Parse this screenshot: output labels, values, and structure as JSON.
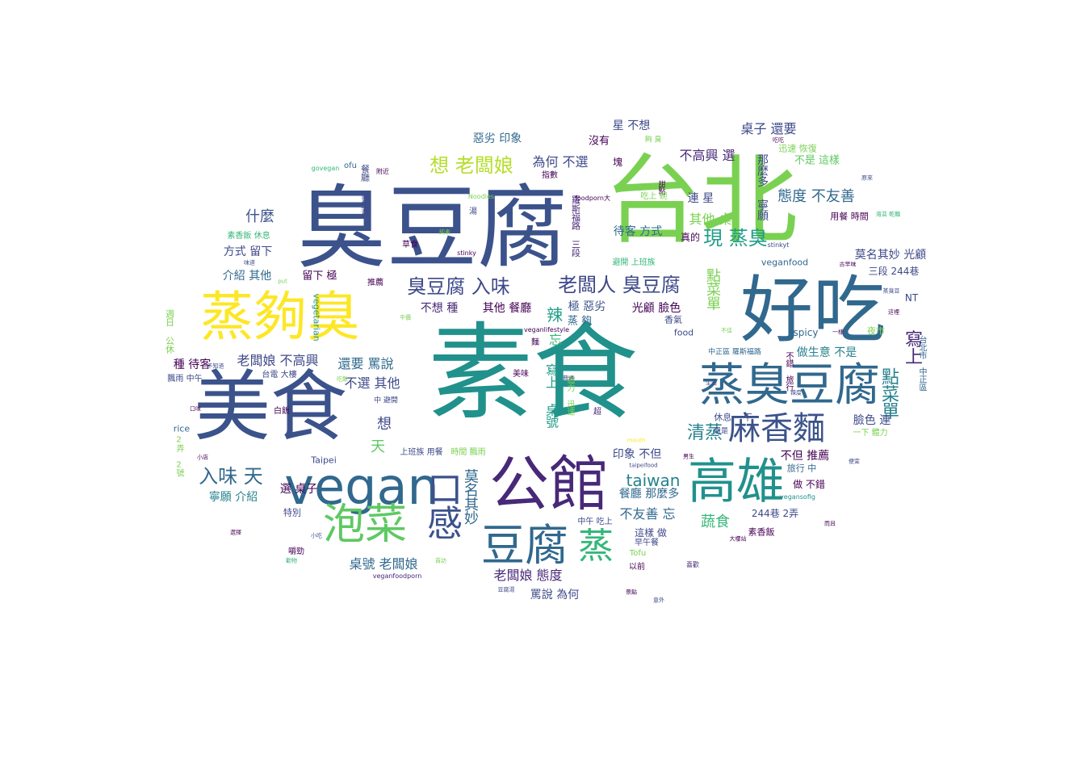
{
  "words": [
    {
      "text": "素食",
      "color": "#21918c"
    },
    {
      "text": "臭豆腐",
      "color": "#3b528b"
    },
    {
      "text": "台北",
      "color": "#7ad151"
    },
    {
      "text": "好吃",
      "color": "#31688e"
    },
    {
      "text": "美食",
      "color": "#3b528b"
    },
    {
      "text": "蒸夠臭",
      "color": "#fde725"
    },
    {
      "text": "公館",
      "color": "#482878"
    },
    {
      "text": "vegan",
      "color": "#31688e"
    },
    {
      "text": "高雄",
      "color": "#21918c"
    },
    {
      "text": "蒸臭豆腐",
      "color": "#31688e"
    },
    {
      "text": "口感",
      "color": "#3b528b"
    },
    {
      "text": "泡菜",
      "color": "#5ec962"
    },
    {
      "text": "豆腐",
      "color": "#31688e"
    },
    {
      "text": "麻香麵",
      "color": "#3b528b"
    },
    {
      "text": "蒸",
      "color": "#35b779"
    },
    {
      "text": "老闆人 臭豆腐",
      "color": "#3e4989"
    },
    {
      "text": "臭豆腐 入味",
      "color": "#3e4989"
    },
    {
      "text": "想 老闆娘",
      "color": "#b5de2b"
    },
    {
      "text": "入味 天",
      "color": "#31688e"
    },
    {
      "text": "taiwan",
      "color": "#26828e"
    },
    {
      "text": "清蒸",
      "color": "#26828e"
    },
    {
      "text": "現 蒸臭",
      "color": "#1f9e89"
    },
    {
      "text": "點菜單",
      "color": "#26828e"
    },
    {
      "text": "寫上",
      "color": "#482878"
    },
    {
      "text": "桌子 還要",
      "color": "#3e4989"
    },
    {
      "text": "態度 不友善",
      "color": "#31688e"
    },
    {
      "text": "不高興 選",
      "color": "#482878"
    },
    {
      "text": "為何 不選",
      "color": "#3e4989"
    },
    {
      "text": "惡劣 印象",
      "color": "#31688e"
    },
    {
      "text": "星 不想",
      "color": "#3e4989"
    },
    {
      "text": "沒有",
      "color": "#440154"
    },
    {
      "text": "什麼",
      "color": "#3b528b"
    },
    {
      "text": "介紹 其他",
      "color": "#31688e"
    },
    {
      "text": "方式 留下",
      "color": "#3e4989"
    },
    {
      "text": "留下 極",
      "color": "#440154"
    },
    {
      "text": "老闆娘 不高興",
      "color": "#3e4989"
    },
    {
      "text": "還要 罵說",
      "color": "#31688e"
    },
    {
      "text": "不選 其他",
      "color": "#3e4989"
    },
    {
      "text": "不想 種",
      "color": "#482878"
    },
    {
      "text": "其他 餐廳",
      "color": "#440154"
    },
    {
      "text": "種 待客",
      "color": "#440154"
    },
    {
      "text": "其他 桌",
      "color": "#7ad151"
    },
    {
      "text": "待客 方式",
      "color": "#31688e"
    },
    {
      "text": "連 星",
      "color": "#3e4989"
    },
    {
      "text": "真的",
      "color": "#440154"
    },
    {
      "text": "辣",
      "color": "#1f9e89"
    },
    {
      "text": "極 惡劣",
      "color": "#3b528b"
    },
    {
      "text": "光顧 臉色",
      "color": "#440154"
    },
    {
      "text": "蒸 夠",
      "color": "#31688e"
    },
    {
      "text": "忘",
      "color": "#35b779"
    },
    {
      "text": "點菜單",
      "color": "#7ad151"
    },
    {
      "text": "寫上 桌號",
      "color": "#1f9e89"
    },
    {
      "text": "天",
      "color": "#5ec962"
    },
    {
      "text": "想",
      "color": "#3e4989"
    },
    {
      "text": "莫名其妙",
      "color": "#31688e"
    },
    {
      "text": "桌號 老闆娘",
      "color": "#31688e"
    },
    {
      "text": "寧願 介紹",
      "color": "#26828e"
    },
    {
      "text": "選 桌子",
      "color": "#440154"
    },
    {
      "text": "老闆娘 態度",
      "color": "#482878"
    },
    {
      "text": "罵說 為何",
      "color": "#3e4989"
    },
    {
      "text": "不友善 忘",
      "color": "#31688e"
    },
    {
      "text": "餐廳 那麼多",
      "color": "#31688e"
    },
    {
      "text": "蔬食",
      "color": "#35b779"
    },
    {
      "text": "印象 不但",
      "color": "#3e4989"
    },
    {
      "text": "不但 推薦",
      "color": "#440154"
    },
    {
      "text": "做生意 不是",
      "color": "#26828e"
    },
    {
      "text": "臉色 連",
      "color": "#3e4989"
    },
    {
      "text": "莫名其妙 光顧",
      "color": "#3e4989"
    },
    {
      "text": "那麼多 寧願",
      "color": "#3e4989"
    },
    {
      "text": "不是 這樣",
      "color": "#5ec962"
    },
    {
      "text": "迅速 恢復",
      "color": "#7ad151"
    },
    {
      "text": "用餐 時間",
      "color": "#440154"
    },
    {
      "text": "三段 244巷",
      "color": "#3e4989"
    },
    {
      "text": "veganfood",
      "color": "#31688e"
    },
    {
      "text": "NT",
      "color": "#3e4989"
    },
    {
      "text": "spicy",
      "color": "#31688e"
    },
    {
      "text": "food",
      "color": "#3e4989"
    },
    {
      "text": "香氣",
      "color": "#3e4989"
    },
    {
      "text": "夜市",
      "color": "#7ad151"
    },
    {
      "text": "中正區 羅斯福路",
      "color": "#31688e"
    },
    {
      "text": "休息 一下",
      "color": "#3e4989"
    },
    {
      "text": "旅行 中",
      "color": "#31688e"
    },
    {
      "text": "做 不錯",
      "color": "#440154"
    },
    {
      "text": "244巷 2弄",
      "color": "#3e4989"
    },
    {
      "text": "素香飯",
      "color": "#440154"
    },
    {
      "text": "這樣 做",
      "color": "#3e4989"
    },
    {
      "text": "早午餐",
      "color": "#3e4989"
    },
    {
      "text": "Tofu",
      "color": "#7ad151"
    },
    {
      "text": "以前",
      "color": "#440154"
    },
    {
      "text": "喜歡",
      "color": "#482878"
    },
    {
      "text": "中午 吃上",
      "color": "#3e4989"
    },
    {
      "text": "美味",
      "color": "#440154"
    },
    {
      "text": "上班族 用餐",
      "color": "#3e4989"
    },
    {
      "text": "時間 飄雨",
      "color": "#7ad151"
    },
    {
      "text": "Taipei",
      "color": "#3e4989"
    },
    {
      "text": "台電 大樓",
      "color": "#3e4989"
    },
    {
      "text": "飄雨 中午",
      "color": "#3e4989"
    },
    {
      "text": "週日 公休",
      "color": "#7ad151"
    },
    {
      "text": "vegetarian",
      "color": "#21918c"
    },
    {
      "text": "rice",
      "color": "#31688e"
    },
    {
      "text": "白飯",
      "color": "#440154"
    },
    {
      "text": "2弄 2號",
      "color": "#7ad151"
    },
    {
      "text": "特別",
      "color": "#3e4989"
    },
    {
      "text": "嚼勁",
      "color": "#440154"
    },
    {
      "text": "中 避開",
      "color": "#3e4989"
    },
    {
      "text": "推薦",
      "color": "#440154"
    },
    {
      "text": "素香飯 休息",
      "color": "#35b779"
    },
    {
      "text": "ofu",
      "color": "#31688e"
    },
    {
      "text": "草食",
      "color": "#440154"
    },
    {
      "text": "湯",
      "color": "#3e4989"
    },
    {
      "text": "避開 上班族",
      "color": "#35b779"
    },
    {
      "text": "指數",
      "color": "#440154"
    },
    {
      "text": "塊",
      "color": "#440154"
    },
    {
      "text": "甜點",
      "color": "#440154"
    },
    {
      "text": "吃上 碗",
      "color": "#7ad151"
    },
    {
      "text": "foodporn大",
      "color": "#440154"
    },
    {
      "text": "羅斯福路 三段",
      "color": "#482878"
    },
    {
      "text": "餐廳 做生意",
      "color": "#3e4989"
    },
    {
      "text": "夠 臭",
      "color": "#7ad151"
    },
    {
      "text": "超",
      "color": "#482878"
    },
    {
      "text": "體力 迅速",
      "color": "#7ad151"
    },
    {
      "text": "麵",
      "color": "#440154"
    },
    {
      "text": "veganlifestyle",
      "color": "#440154"
    },
    {
      "text": "不錯 旅行",
      "color": "#440154"
    },
    {
      "text": "台北市 中正區",
      "color": "#31688e"
    },
    {
      "text": "一下 體力",
      "color": "#7ad151"
    },
    {
      "text": "stinky",
      "color": "#440154"
    },
    {
      "text": "stinkyt",
      "color": "#3e4989"
    },
    {
      "text": "Noodles",
      "color": "#7ad151"
    },
    {
      "text": "govegan",
      "color": "#35b779"
    },
    {
      "text": "mouth",
      "color": "#fde725"
    },
    {
      "text": "taipeifood",
      "color": "#3e4989"
    },
    {
      "text": "vegansofig",
      "color": "#21918c"
    },
    {
      "text": "veganfoodporn",
      "color": "#482878"
    },
    {
      "text": "附近",
      "color": "#440154"
    },
    {
      "text": "古早味",
      "color": "#440154"
    },
    {
      "text": "海苔 乾麵",
      "color": "#35b779"
    },
    {
      "text": "原來",
      "color": "#3e4989"
    },
    {
      "text": "吃吃",
      "color": "#440154"
    },
    {
      "text": "大樓站",
      "color": "#440154"
    },
    {
      "text": "生活",
      "color": "#3e4989"
    },
    {
      "text": "男生",
      "color": "#440154"
    },
    {
      "text": "還是",
      "color": "#3e4989"
    },
    {
      "text": "小店",
      "color": "#440154"
    },
    {
      "text": "小吃",
      "color": "#3e4989"
    },
    {
      "text": "選擇",
      "color": "#440154"
    },
    {
      "text": "普通",
      "color": "#3e4989"
    },
    {
      "text": "意外",
      "color": "#3e4989"
    },
    {
      "text": "景點",
      "color": "#440154"
    },
    {
      "text": "豆腐湯",
      "color": "#3e4989"
    },
    {
      "text": "首訪",
      "color": "#7ad151"
    },
    {
      "text": "勸物",
      "color": "#35b779"
    },
    {
      "text": "而且",
      "color": "#440154"
    },
    {
      "text": "便宜",
      "color": "#3e4989"
    },
    {
      "text": "一樣",
      "color": "#440154"
    },
    {
      "text": "這裡",
      "color": "#440154"
    },
    {
      "text": "蒸臭豆",
      "color": "#3e4989"
    },
    {
      "text": "不佳",
      "color": "#7ad151"
    },
    {
      "text": "辣度",
      "color": "#3e4989"
    },
    {
      "text": "口味",
      "color": "#440154"
    },
    {
      "text": "不知道",
      "color": "#3e4989"
    },
    {
      "text": "味道",
      "color": "#3e4989"
    },
    {
      "text": "put",
      "color": "#7ad151"
    },
    {
      "text": "吃飯",
      "color": "#7ad151"
    },
    {
      "text": "平價",
      "color": "#7ad151"
    },
    {
      "text": "純素",
      "color": "#7ad151"
    }
  ]
}
